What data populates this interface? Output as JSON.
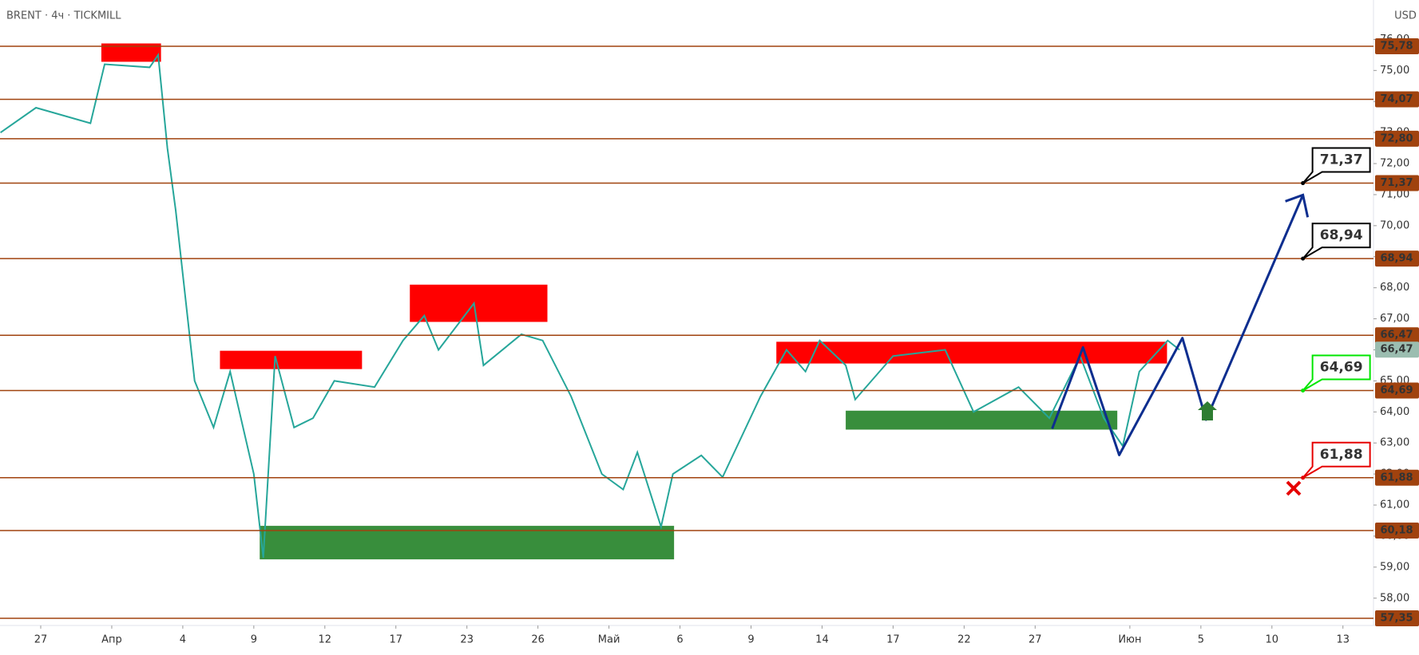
{
  "chart_data": {
    "type": "line",
    "title": "BRENT · 4ч · TICKMILL",
    "y_axis_label": "USD",
    "color": "#26a69a",
    "x": [
      -1.7,
      -0.2,
      2.1,
      2.7,
      4.6,
      4.96,
      5.35,
      5.7,
      6.5,
      7.3,
      8.0,
      9.0,
      9.4,
      9.9,
      10.7,
      11.5,
      12.4,
      14.1,
      15.3,
      16.2,
      16.8,
      18.3,
      18.7,
      20.3,
      21.2,
      22.4,
      23.7,
      24.6,
      25.2,
      26.2,
      26.7,
      27.9,
      28.8,
      30.4,
      31.5,
      32.3,
      32.9,
      34.0,
      34.4,
      36.0,
      38.2,
      39.4,
      41.3,
      42.6,
      43.9,
      44.9,
      45.7,
      46.4,
      47.6,
      48.1
    ],
    "values": [
      73.0,
      73.8,
      73.3,
      75.2,
      75.1,
      75.5,
      72.5,
      70.5,
      65.0,
      63.5,
      65.3,
      62.0,
      59.3,
      65.8,
      63.5,
      63.8,
      65.0,
      64.8,
      66.3,
      67.1,
      66.0,
      67.5,
      65.5,
      66.5,
      66.3,
      64.5,
      62.0,
      61.5,
      62.7,
      60.3,
      62.0,
      62.6,
      61.9,
      64.5,
      66.0,
      65.3,
      66.3,
      65.5,
      64.4,
      65.8,
      66.0,
      64.0,
      64.8,
      63.8,
      65.8,
      63.8,
      62.9,
      65.3,
      66.3,
      66.0
    ],
    "xlim": [
      -1.72,
      56.29
    ],
    "ylim": [
      57.12,
      77.27
    ],
    "xticks": [
      {
        "value": 0,
        "label": "27"
      },
      {
        "value": 3,
        "label": "Апр"
      },
      {
        "value": 6,
        "label": "4"
      },
      {
        "value": 9,
        "label": "9"
      },
      {
        "value": 12,
        "label": "12"
      },
      {
        "value": 15,
        "label": "17"
      },
      {
        "value": 18,
        "label": "23"
      },
      {
        "value": 21,
        "label": "26"
      },
      {
        "value": 24,
        "label": "Май"
      },
      {
        "value": 27,
        "label": "6"
      },
      {
        "value": 30,
        "label": "9"
      },
      {
        "value": 33,
        "label": "14"
      },
      {
        "value": 36,
        "label": "17"
      },
      {
        "value": 39,
        "label": "22"
      },
      {
        "value": 42,
        "label": "27"
      },
      {
        "value": 46,
        "label": "Июн"
      },
      {
        "value": 49,
        "label": "5"
      },
      {
        "value": 52,
        "label": "10"
      },
      {
        "value": 55,
        "label": "13"
      }
    ],
    "yticks": [
      {
        "value": 58,
        "label": "58,00"
      },
      {
        "value": 59,
        "label": "59,00"
      },
      {
        "value": 60,
        "label": "60,00"
      },
      {
        "value": 61,
        "label": "61,00"
      },
      {
        "value": 62,
        "label": "62,00"
      },
      {
        "value": 63,
        "label": "63,00"
      },
      {
        "value": 64,
        "label": "64,00"
      },
      {
        "value": 65,
        "label": "65,00"
      },
      {
        "value": 66,
        "label": "66,00"
      },
      {
        "value": 67,
        "label": "67,00"
      },
      {
        "value": 68,
        "label": "68,00"
      },
      {
        "value": 69,
        "label": "69,00"
      },
      {
        "value": 70,
        "label": "70,00"
      },
      {
        "value": 71,
        "label": "71,00"
      },
      {
        "value": 72,
        "label": "72,00"
      },
      {
        "value": 73,
        "label": "73,00"
      },
      {
        "value": 74,
        "label": "74,00"
      },
      {
        "value": 75,
        "label": "75,00"
      },
      {
        "value": 76,
        "label": "76,00"
      }
    ],
    "levels": [
      {
        "value": 75.78,
        "label": "75,78"
      },
      {
        "value": 74.07,
        "label": "74,07"
      },
      {
        "value": 72.8,
        "label": "72,80"
      },
      {
        "value": 71.37,
        "label": "71,37"
      },
      {
        "value": 68.94,
        "label": "68,94"
      },
      {
        "value": 66.47,
        "label": "66,47"
      },
      {
        "value": 64.69,
        "label": "64,69"
      },
      {
        "value": 61.88,
        "label": "61,88"
      },
      {
        "value": 60.18,
        "label": "60,18"
      },
      {
        "value": 57.35,
        "label": "57,35"
      }
    ],
    "level_color": "#a0420e",
    "current_price": {
      "value": 66.47,
      "label": "66,47",
      "color": "#9bbdb0"
    },
    "zones": [
      {
        "x": [
          2.56,
          5.08
        ],
        "y": [
          75.28,
          75.87
        ],
        "color": "#ff0000"
      },
      {
        "x": [
          7.57,
          13.57
        ],
        "y": [
          65.38,
          65.97
        ],
        "color": "#ff0000"
      },
      {
        "x": [
          15.59,
          21.4
        ],
        "y": [
          66.9,
          68.1
        ],
        "color": "#ff0000"
      },
      {
        "x": [
          31.07,
          47.57
        ],
        "y": [
          65.56,
          66.26
        ],
        "color": "#ff0000"
      },
      {
        "x": [
          9.25,
          26.75
        ],
        "y": [
          59.25,
          60.33
        ],
        "color": "#388e3c"
      },
      {
        "x": [
          34.0,
          45.47
        ],
        "y": [
          63.43,
          64.04
        ],
        "color": "#388e3c"
      }
    ],
    "projection": {
      "x": [
        42.72,
        44.02,
        45.55,
        48.22,
        49.22,
        53.31
      ],
      "values": [
        63.46,
        66.08,
        62.61,
        66.38,
        63.75,
        70.99
      ],
      "color": "#0d2e8f"
    },
    "callouts": [
      {
        "x": 53.31,
        "value": 71.37,
        "label": "71,37",
        "color": "#000000"
      },
      {
        "x": 53.31,
        "value": 68.94,
        "label": "68,94",
        "color": "#000000"
      },
      {
        "x": 53.31,
        "value": 64.69,
        "label": "64,69",
        "color": "#00e600"
      },
      {
        "x": 53.31,
        "value": 61.88,
        "label": "61,88",
        "color": "#e60000"
      }
    ]
  }
}
